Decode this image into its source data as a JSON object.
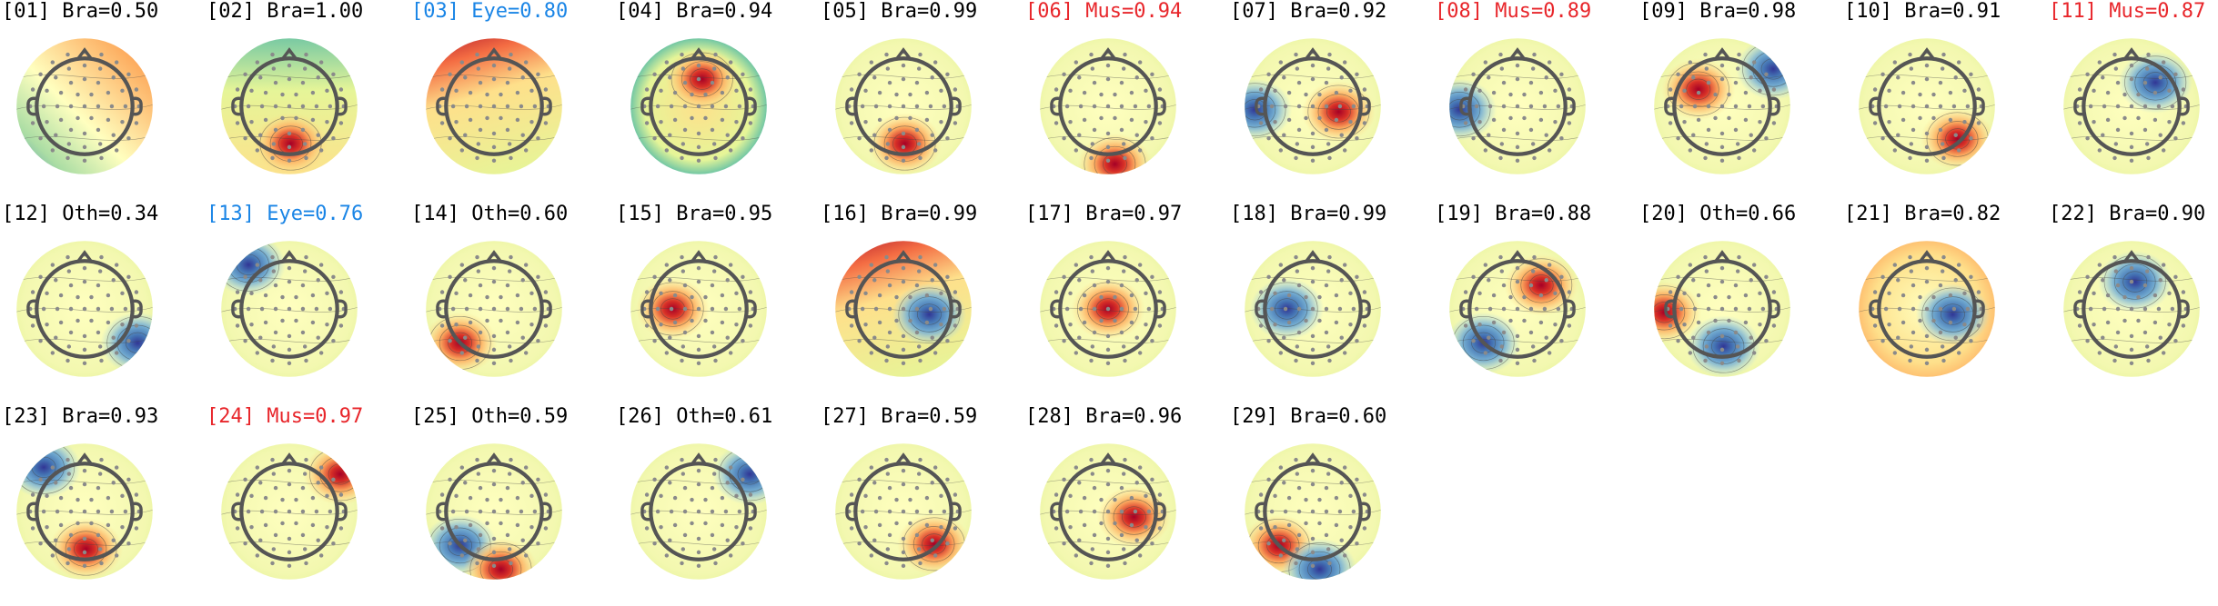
{
  "figure": {
    "colors": {
      "brain": "#000000",
      "eye": "#1a85e6",
      "muscle": "#e8262b",
      "other": "#000000"
    }
  },
  "components": [
    {
      "label": "[01] Bra=0.50",
      "category": "brain",
      "style": "lr_gradient",
      "blobs": []
    },
    {
      "label": "[02] Bra=1.00",
      "category": "brain",
      "style": "teal_top",
      "blobs": [
        {
          "sign": 1,
          "pos": "bottom-center"
        }
      ]
    },
    {
      "label": "[03] Eye=0.80",
      "category": "eye",
      "style": "red_top",
      "blobs": []
    },
    {
      "label": "[04] Bra=0.94",
      "category": "brain",
      "style": "blue_rim",
      "blobs": [
        {
          "sign": 1,
          "pos": "upper-center"
        }
      ]
    },
    {
      "label": "[05] Bra=0.99",
      "category": "brain",
      "style": "neutral",
      "blobs": [
        {
          "sign": 1,
          "pos": "bottom-center"
        }
      ]
    },
    {
      "label": "[06] Mus=0.94",
      "category": "muscle",
      "style": "neutral",
      "blobs": [
        {
          "sign": 1,
          "pos": "bottom-edge"
        }
      ]
    },
    {
      "label": "[07] Bra=0.92",
      "category": "brain",
      "style": "neutral",
      "blobs": [
        {
          "sign": -1,
          "pos": "left-edge"
        },
        {
          "sign": 1,
          "pos": "center-right"
        }
      ]
    },
    {
      "label": "[08] Mus=0.89",
      "category": "muscle",
      "style": "neutral",
      "blobs": [
        {
          "sign": -1,
          "pos": "left-edge"
        }
      ]
    },
    {
      "label": "[09] Bra=0.98",
      "category": "brain",
      "style": "neutral",
      "blobs": [
        {
          "sign": 1,
          "pos": "upper-left"
        },
        {
          "sign": -1,
          "pos": "top-right-edge"
        }
      ]
    },
    {
      "label": "[10] Bra=0.91",
      "category": "brain",
      "style": "neutral",
      "blobs": [
        {
          "sign": 1,
          "pos": "lower-right"
        }
      ]
    },
    {
      "label": "[11] Mus=0.87",
      "category": "muscle",
      "style": "neutral",
      "blobs": [
        {
          "sign": -1,
          "pos": "upper-right"
        }
      ]
    },
    {
      "label": "[12] Oth=0.34",
      "category": "other",
      "style": "neutral",
      "blobs": [
        {
          "sign": -1,
          "pos": "lower-right-edge"
        }
      ]
    },
    {
      "label": "[13] Eye=0.76",
      "category": "eye",
      "style": "neutral",
      "blobs": [
        {
          "sign": -1,
          "pos": "top-left-edge"
        }
      ]
    },
    {
      "label": "[14] Oth=0.60",
      "category": "other",
      "style": "neutral",
      "blobs": [
        {
          "sign": 1,
          "pos": "lower-left"
        }
      ]
    },
    {
      "label": "[15] Bra=0.95",
      "category": "brain",
      "style": "neutral",
      "blobs": [
        {
          "sign": 1,
          "pos": "center-left"
        }
      ]
    },
    {
      "label": "[16] Bra=0.99",
      "category": "brain",
      "style": "red_top",
      "blobs": [
        {
          "sign": -1,
          "pos": "center-right"
        }
      ]
    },
    {
      "label": "[17] Bra=0.97",
      "category": "brain",
      "style": "neutral",
      "blobs": [
        {
          "sign": 1,
          "pos": "center"
        }
      ]
    },
    {
      "label": "[18] Bra=0.99",
      "category": "brain",
      "style": "neutral",
      "blobs": [
        {
          "sign": -1,
          "pos": "center-left"
        }
      ]
    },
    {
      "label": "[19] Bra=0.88",
      "category": "brain",
      "style": "neutral",
      "blobs": [
        {
          "sign": 1,
          "pos": "upper-right"
        },
        {
          "sign": -1,
          "pos": "lower-left"
        }
      ]
    },
    {
      "label": "[20] Oth=0.66",
      "category": "other",
      "style": "neutral",
      "blobs": [
        {
          "sign": 1,
          "pos": "left-edge"
        },
        {
          "sign": -1,
          "pos": "bottom-center"
        }
      ]
    },
    {
      "label": "[21] Bra=0.82",
      "category": "brain",
      "style": "warm_rim",
      "blobs": [
        {
          "sign": -1,
          "pos": "center-right"
        }
      ]
    },
    {
      "label": "[22] Bra=0.90",
      "category": "brain",
      "style": "neutral",
      "blobs": [
        {
          "sign": -1,
          "pos": "upper-center"
        }
      ]
    },
    {
      "label": "[23] Bra=0.93",
      "category": "brain",
      "style": "neutral",
      "blobs": [
        {
          "sign": 1,
          "pos": "bottom-center"
        },
        {
          "sign": -1,
          "pos": "top-left-edge"
        }
      ]
    },
    {
      "label": "[24] Mus=0.97",
      "category": "muscle",
      "style": "neutral",
      "blobs": [
        {
          "sign": 1,
          "pos": "top-right-edge"
        }
      ]
    },
    {
      "label": "[25] Oth=0.59",
      "category": "other",
      "style": "neutral",
      "blobs": [
        {
          "sign": -1,
          "pos": "lower-left"
        },
        {
          "sign": 1,
          "pos": "bottom-edge"
        }
      ]
    },
    {
      "label": "[26] Oth=0.61",
      "category": "other",
      "style": "neutral",
      "blobs": [
        {
          "sign": -1,
          "pos": "top-right-edge"
        }
      ]
    },
    {
      "label": "[27] Bra=0.59",
      "category": "brain",
      "style": "neutral",
      "blobs": [
        {
          "sign": 1,
          "pos": "lower-right"
        }
      ]
    },
    {
      "label": "[28] Bra=0.96",
      "category": "brain",
      "style": "neutral",
      "blobs": [
        {
          "sign": 1,
          "pos": "center-right"
        }
      ]
    },
    {
      "label": "[29] Bra=0.60",
      "category": "brain",
      "style": "neutral",
      "blobs": [
        {
          "sign": 1,
          "pos": "lower-left"
        },
        {
          "sign": -1,
          "pos": "bottom-edge"
        }
      ]
    }
  ]
}
